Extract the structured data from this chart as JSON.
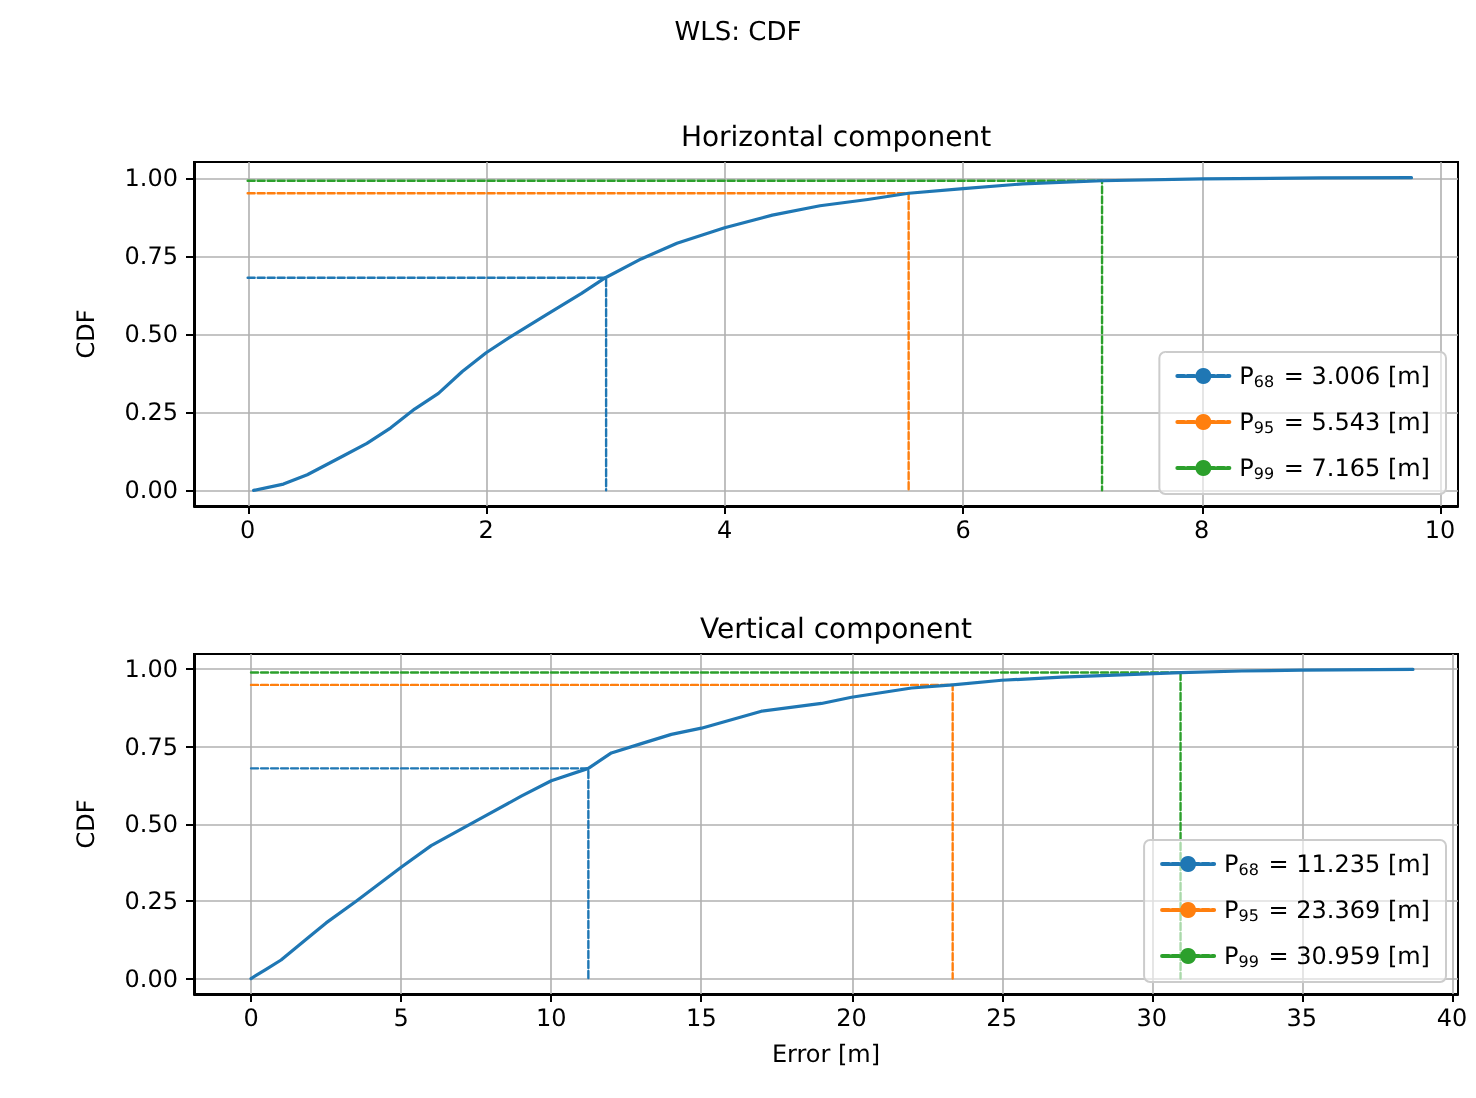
{
  "chart_data": [
    {
      "type": "line",
      "title": "Horizontal component",
      "ylabel": "CDF",
      "annotations": [
        "WLS: CDF"
      ],
      "marker": "none",
      "grid": true,
      "legend": "bottom right",
      "xlim": [
        -0.45,
        10.15
      ],
      "ylim": [
        -0.05,
        1.05
      ],
      "xticks": [
        0,
        2,
        4,
        6,
        8,
        10
      ],
      "yticks": [
        {
          "value": 0,
          "label": "0.00"
        },
        {
          "value": 0.25,
          "label": "0.25"
        },
        {
          "value": 0.5,
          "label": "0.50"
        },
        {
          "value": 0.75,
          "label": "0.75"
        },
        {
          "value": 1,
          "label": "1.00"
        }
      ],
      "series": [
        {
          "color": "#1f77b4",
          "x": [
            0.05,
            0.3,
            0.5,
            0.8,
            1.0,
            1.2,
            1.4,
            1.6,
            1.8,
            2.0,
            2.2,
            2.5,
            2.8,
            3.0,
            3.3,
            3.6,
            4.0,
            4.4,
            4.8,
            5.2,
            5.543,
            6.0,
            6.5,
            7.165,
            8,
            9,
            9.76
          ],
          "values": [
            0,
            0.02,
            0.05,
            0.11,
            0.15,
            0.2,
            0.26,
            0.31,
            0.38,
            0.44,
            0.49,
            0.56,
            0.63,
            0.68,
            0.74,
            0.79,
            0.84,
            0.88,
            0.91,
            0.93,
            0.95,
            0.965,
            0.98,
            0.99,
            0.996,
            0.999,
            1.0
          ]
        },
        {
          "name": "P$_{68}$ = 3.006 [m]",
          "color": "#1f77b4",
          "line_style": "dashed",
          "x": [
            0,
            3.006,
            3.006
          ],
          "values": [
            0.68,
            0.68,
            0
          ]
        },
        {
          "name": "P$_{95}$ = 5.543 [m]",
          "color": "#ff7f0e",
          "line_style": "dashed",
          "x": [
            0,
            5.543,
            5.543
          ],
          "values": [
            0.95,
            0.95,
            0
          ]
        },
        {
          "name": "P$_{99}$ = 7.165 [m]",
          "color": "#2ca02c",
          "line_style": "dashed",
          "x": [
            0,
            7.165,
            7.165
          ],
          "values": [
            0.99,
            0.99,
            0
          ]
        }
      ]
    },
    {
      "type": "line",
      "title": "Vertical component",
      "xlabel": "Error [m]",
      "ylabel": "CDF",
      "marker": "none",
      "grid": true,
      "legend": "bottom right",
      "xlim": [
        -1.9,
        40.2
      ],
      "ylim": [
        -0.05,
        1.05
      ],
      "xticks": [
        0,
        5,
        10,
        15,
        20,
        25,
        30,
        35,
        40
      ],
      "yticks": [
        {
          "value": 0,
          "label": "0.00"
        },
        {
          "value": 0.25,
          "label": "0.25"
        },
        {
          "value": 0.5,
          "label": "0.50"
        },
        {
          "value": 0.75,
          "label": "0.75"
        },
        {
          "value": 1,
          "label": "1.00"
        }
      ],
      "series": [
        {
          "color": "#1f77b4",
          "x": [
            0,
            0.5,
            1,
            2,
            2.5,
            3.5,
            5,
            6,
            7.5,
            9,
            10,
            11.235,
            12,
            13,
            14,
            15,
            17,
            19,
            20,
            22,
            23.369,
            25,
            27,
            30.959,
            33,
            35,
            38.7
          ],
          "values": [
            0,
            0.03,
            0.06,
            0.14,
            0.18,
            0.25,
            0.36,
            0.43,
            0.51,
            0.59,
            0.64,
            0.68,
            0.73,
            0.76,
            0.79,
            0.81,
            0.865,
            0.89,
            0.91,
            0.94,
            0.95,
            0.965,
            0.975,
            0.99,
            0.995,
            0.998,
            1.0
          ]
        },
        {
          "name": "P$_{68}$ = 11.235 [m]",
          "color": "#1f77b4",
          "line_style": "dashed",
          "x": [
            0,
            11.235,
            11.235
          ],
          "values": [
            0.68,
            0.68,
            0
          ]
        },
        {
          "name": "P$_{95}$ = 23.369 [m]",
          "color": "#ff7f0e",
          "line_style": "dashed",
          "x": [
            0,
            23.369,
            23.369
          ],
          "values": [
            0.95,
            0.95,
            0
          ]
        },
        {
          "name": "P$_{99}$ = 30.959 [m]",
          "color": "#2ca02c",
          "line_style": "dashed",
          "x": [
            0,
            30.959,
            30.959
          ],
          "values": [
            0.99,
            0.99,
            0
          ]
        }
      ]
    }
  ]
}
